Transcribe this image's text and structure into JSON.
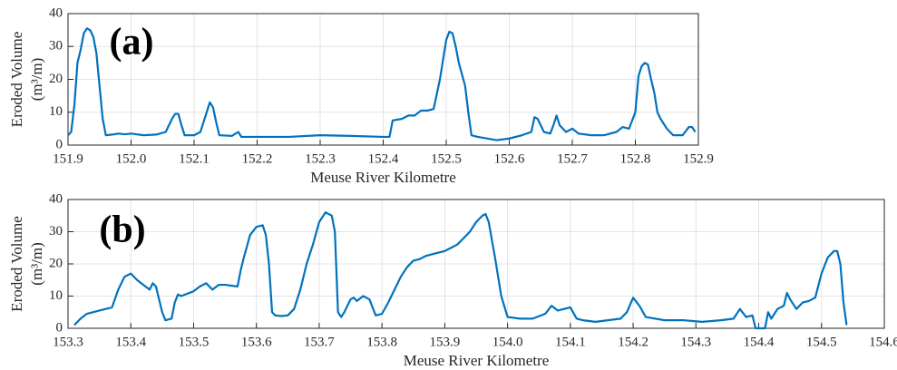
{
  "chart_data": [
    {
      "type": "line",
      "annotation": "(a)",
      "xlabel": "Meuse River Kilometre",
      "ylabel": [
        "Eroded Volume",
        "(m³/m)"
      ],
      "grid": true,
      "xlim": [
        151.9,
        152.9
      ],
      "ylim": [
        0,
        40
      ],
      "xticks": [
        151.9,
        {
          "value": 152,
          "label": "152.0"
        },
        152.1,
        152.2,
        152.3,
        152.4,
        152.5,
        152.6,
        152.7,
        152.8,
        152.9
      ],
      "yticks": [
        0,
        10,
        20,
        30,
        40
      ],
      "x": [
        151.9,
        151.905,
        151.91,
        151.915,
        151.92,
        151.925,
        151.93,
        151.935,
        151.94,
        151.945,
        151.95,
        151.955,
        151.96,
        151.97,
        151.98,
        151.99,
        152.0,
        152.02,
        152.04,
        152.055,
        152.065,
        152.07,
        152.075,
        152.08,
        152.085,
        152.1,
        152.11,
        152.12,
        152.125,
        152.13,
        152.135,
        152.14,
        152.16,
        152.17,
        152.175,
        152.2,
        152.25,
        152.3,
        152.35,
        152.4,
        152.41,
        152.415,
        152.43,
        152.44,
        152.45,
        152.46,
        152.47,
        152.48,
        152.49,
        152.5,
        152.505,
        152.51,
        152.515,
        152.52,
        152.53,
        152.535,
        152.54,
        152.55,
        152.58,
        152.6,
        152.62,
        152.635,
        152.64,
        152.645,
        152.655,
        152.665,
        152.67,
        152.675,
        152.68,
        152.69,
        152.7,
        152.71,
        152.73,
        152.75,
        152.77,
        152.78,
        152.79,
        152.8,
        152.805,
        152.81,
        152.815,
        152.82,
        152.825,
        152.83,
        152.835,
        152.84,
        152.85,
        152.86,
        152.875,
        152.885,
        152.89,
        152.895
      ],
      "series": [
        {
          "color": "#0072BD",
          "values": [
            3,
            4,
            12,
            25,
            29,
            34,
            35.5,
            35,
            33,
            28,
            18,
            8,
            3,
            3.2,
            3.5,
            3.3,
            3.5,
            3,
            3.2,
            4,
            8,
            9.5,
            9.5,
            6,
            3,
            3,
            4,
            10,
            13,
            11.5,
            7,
            3,
            2.8,
            4,
            2.5,
            2.5,
            2.5,
            3,
            2.8,
            2.5,
            2.5,
            7.5,
            8,
            9,
            9,
            10.5,
            10.5,
            11,
            20,
            32,
            34.5,
            34,
            30,
            25,
            18,
            10,
            3,
            2.5,
            1.5,
            2,
            3,
            4,
            8.5,
            8,
            4,
            3.5,
            6,
            9,
            6,
            4,
            5,
            3.5,
            3,
            3,
            4,
            5.5,
            5,
            10,
            21,
            24,
            25,
            24.5,
            20,
            16,
            10,
            8,
            5,
            3,
            3,
            5.5,
            5.5,
            4
          ]
        }
      ]
    },
    {
      "type": "line",
      "annotation": "(b)",
      "xlabel": "Meuse River Kilometre",
      "ylabel": [
        "Eroded Volume",
        "(m³/m)"
      ],
      "grid": true,
      "xlim": [
        153.3,
        154.6
      ],
      "ylim": [
        0,
        40
      ],
      "xticks": [
        153.3,
        153.4,
        153.5,
        153.6,
        153.7,
        153.8,
        153.9,
        {
          "value": 154,
          "label": "154.0"
        },
        154.1,
        154.2,
        154.3,
        154.4,
        154.5,
        154.6
      ],
      "yticks": [
        0,
        10,
        20,
        30,
        40
      ],
      "x": [
        153.31,
        153.32,
        153.33,
        153.35,
        153.36,
        153.37,
        153.38,
        153.39,
        153.4,
        153.41,
        153.42,
        153.43,
        153.435,
        153.44,
        153.45,
        153.455,
        153.465,
        153.47,
        153.475,
        153.48,
        153.5,
        153.51,
        153.52,
        153.53,
        153.54,
        153.55,
        153.57,
        153.575,
        153.58,
        153.59,
        153.6,
        153.61,
        153.615,
        153.62,
        153.625,
        153.63,
        153.64,
        153.65,
        153.66,
        153.67,
        153.68,
        153.69,
        153.7,
        153.71,
        153.72,
        153.725,
        153.73,
        153.735,
        153.74,
        153.75,
        153.755,
        153.76,
        153.77,
        153.78,
        153.79,
        153.8,
        153.81,
        153.82,
        153.83,
        153.84,
        153.85,
        153.86,
        153.87,
        153.88,
        153.89,
        153.9,
        153.91,
        153.92,
        153.93,
        153.94,
        153.95,
        153.96,
        153.965,
        153.97,
        153.98,
        153.99,
        154.0,
        154.02,
        154.04,
        154.06,
        154.07,
        154.08,
        154.09,
        154.1,
        154.11,
        154.12,
        154.14,
        154.16,
        154.18,
        154.19,
        154.2,
        154.21,
        154.22,
        154.25,
        154.28,
        154.31,
        154.34,
        154.36,
        154.37,
        154.38,
        154.39,
        154.395,
        154.41,
        154.415,
        154.42,
        154.43,
        154.44,
        154.445,
        154.45,
        154.46,
        154.47,
        154.48,
        154.49,
        154.5,
        154.51,
        154.52,
        154.525,
        154.53,
        154.535,
        154.54
      ],
      "series": [
        {
          "color": "#0072BD",
          "values": [
            1,
            3,
            4.5,
            5.5,
            6,
            6.5,
            12,
            16,
            17,
            15,
            13.5,
            12,
            14,
            13,
            5,
            2.5,
            3,
            8,
            10.5,
            10,
            11.5,
            13,
            14,
            12,
            13.5,
            13.5,
            13,
            18,
            22,
            29,
            31.5,
            32,
            29,
            20,
            5,
            4,
            3.8,
            4,
            6,
            12,
            20,
            26,
            33,
            36,
            35,
            30,
            5,
            3.5,
            5,
            9,
            9.5,
            8.5,
            10,
            9,
            4,
            4.5,
            8,
            12,
            16,
            19,
            21,
            21.5,
            22.5,
            23,
            23.5,
            24,
            25,
            26,
            28,
            30,
            33,
            35,
            35.5,
            33,
            22,
            10,
            3.5,
            3,
            3,
            4.5,
            7,
            5.5,
            6,
            6.5,
            3,
            2.5,
            2,
            2.5,
            3,
            5,
            9.5,
            7,
            3.5,
            2.5,
            2.5,
            2,
            2.5,
            3,
            6,
            3.5,
            4,
            0,
            0,
            5,
            3,
            6,
            7,
            11,
            9,
            6,
            8,
            8.5,
            9.5,
            17,
            22,
            24,
            24,
            20,
            8,
            1
          ]
        }
      ]
    }
  ]
}
